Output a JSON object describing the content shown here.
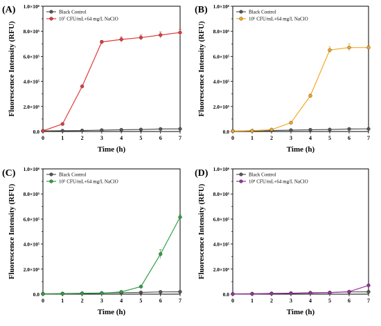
{
  "figure": {
    "x_axis_label": "Time (h)",
    "y_axis_label": "Fluorescence Intensity (RFU)"
  },
  "chart_data": [
    {
      "panel": "(A)",
      "type": "line",
      "xlabel": "Time (h)",
      "ylabel": "Fluorescence Intensity (RFU)",
      "x": [
        0,
        1,
        2,
        3,
        4,
        5,
        6,
        7
      ],
      "xlim": [
        0,
        7
      ],
      "ylim": [
        0,
        1000000
      ],
      "yticks": [
        0,
        200000,
        400000,
        600000,
        800000,
        1000000
      ],
      "ytick_labels": [
        "0.0",
        "2.0×10⁵",
        "4.0×10⁵",
        "6.0×10⁵",
        "8.0×10⁵",
        "1.0×10⁶"
      ],
      "legend_position": "top-left",
      "series": [
        {
          "name": "Black Control",
          "color": "#555555",
          "values": [
            5000,
            6000,
            8000,
            11000,
            14000,
            16000,
            20000,
            21000
          ],
          "errors": [
            2000,
            2000,
            2000,
            2000,
            3000,
            3000,
            3000,
            3000
          ]
        },
        {
          "name": "10⁷ CFU/mL+64 mg/L NaClO",
          "color": "#e23b3b",
          "values": [
            5000,
            60000,
            360000,
            715000,
            735000,
            750000,
            770000,
            790000
          ],
          "errors": [
            3000,
            5000,
            10000,
            12000,
            20000,
            20000,
            25000,
            25000
          ]
        }
      ]
    },
    {
      "panel": "(B)",
      "type": "line",
      "xlabel": "Time (h)",
      "ylabel": "Fluorescence Intensity (RFU)",
      "x": [
        0,
        1,
        2,
        3,
        4,
        5,
        6,
        7
      ],
      "xlim": [
        0,
        7
      ],
      "ylim": [
        0,
        1000000
      ],
      "yticks": [
        0,
        200000,
        400000,
        600000,
        800000,
        1000000
      ],
      "ytick_labels": [
        "0.0",
        "2.0×10⁵",
        "4.0×10⁵",
        "6.0×10⁵",
        "8.0×10⁵",
        "1.0×10⁶"
      ],
      "legend_position": "top-left",
      "series": [
        {
          "name": "Black Control",
          "color": "#555555",
          "values": [
            4000,
            6000,
            8000,
            11000,
            14000,
            16000,
            20000,
            21000
          ],
          "errors": [
            2000,
            2000,
            2000,
            2000,
            3000,
            3000,
            3000,
            3000
          ]
        },
        {
          "name": "10⁶ CFU/mL+64 mg/L NaClO",
          "color": "#f5a623",
          "values": [
            3000,
            6000,
            15000,
            70000,
            285000,
            650000,
            670000,
            670000
          ],
          "errors": [
            2000,
            3000,
            5000,
            8000,
            15000,
            25000,
            30000,
            15000
          ]
        }
      ]
    },
    {
      "panel": "(C)",
      "type": "line",
      "xlabel": "Time (h)",
      "ylabel": "Fluorescence Intensity (RFU)",
      "x": [
        0,
        1,
        2,
        3,
        4,
        5,
        6,
        7
      ],
      "xlim": [
        0,
        7
      ],
      "ylim": [
        0,
        1000000
      ],
      "yticks": [
        0,
        200000,
        400000,
        600000,
        800000,
        1000000
      ],
      "ytick_labels": [
        "0.0",
        "2.0×10⁵",
        "4.0×10⁵",
        "6.0×10⁵",
        "8.0×10⁵",
        "1.0×10⁶"
      ],
      "legend_position": "top-left",
      "series": [
        {
          "name": "Black Control",
          "color": "#555555",
          "values": [
            3000,
            5000,
            7000,
            9000,
            12000,
            14000,
            18000,
            19000
          ],
          "errors": [
            2000,
            2000,
            2000,
            2000,
            3000,
            3000,
            3000,
            3000
          ]
        },
        {
          "name": "10⁵ CFU/mL+64 mg/L NaClO",
          "color": "#2ea043",
          "values": [
            2000,
            3000,
            5000,
            8000,
            18000,
            60000,
            320000,
            615000
          ],
          "errors": [
            1000,
            1000,
            2000,
            3000,
            5000,
            8000,
            35000,
            20000
          ]
        }
      ]
    },
    {
      "panel": "(D)",
      "type": "line",
      "xlabel": "Time (h)",
      "ylabel": "Fluorescence Intensity (RFU)",
      "x": [
        0,
        1,
        2,
        3,
        4,
        5,
        6,
        7
      ],
      "xlim": [
        0,
        7
      ],
      "ylim": [
        0,
        1000000
      ],
      "yticks": [
        0,
        200000,
        400000,
        600000,
        800000,
        1000000
      ],
      "ytick_labels": [
        "0.0",
        "2.0×10⁵",
        "4.0×10⁵",
        "6.0×10⁵",
        "8.0×10⁵",
        "1.0×10⁶"
      ],
      "legend_position": "top-left",
      "series": [
        {
          "name": "Black Control",
          "color": "#555555",
          "values": [
            2000,
            4000,
            6000,
            8000,
            11000,
            13000,
            18000,
            19000
          ],
          "errors": [
            2000,
            2000,
            2000,
            2000,
            3000,
            3000,
            3000,
            3000
          ]
        },
        {
          "name": "10⁴ CFU/mL+64 mg/L NaClO",
          "color": "#9b30a0",
          "values": [
            1000,
            2000,
            4000,
            6000,
            9000,
            12000,
            20000,
            70000
          ],
          "errors": [
            1000,
            1000,
            1000,
            2000,
            2000,
            3000,
            4000,
            10000
          ]
        }
      ]
    }
  ]
}
